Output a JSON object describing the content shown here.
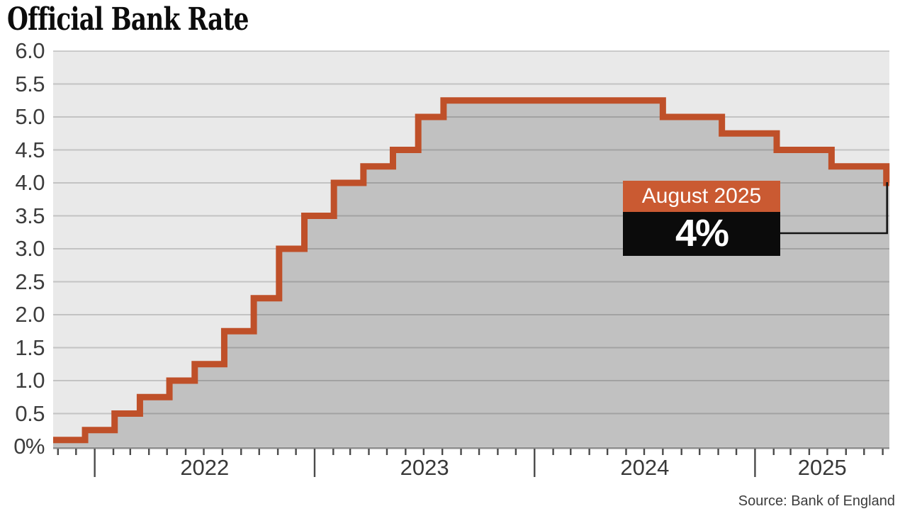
{
  "chart_data": {
    "type": "area",
    "subtype": "step-after",
    "title": "Official Bank Rate",
    "source": "Source: Bank of England",
    "xlabel": "",
    "ylabel": "",
    "unit": "%",
    "ylim": [
      0,
      6
    ],
    "grid": "on",
    "legend": "none",
    "x_range": [
      "2021-10-24",
      "2025-08-12"
    ],
    "y_ticks": [
      {
        "value": 6.0,
        "label": "6.0"
      },
      {
        "value": 5.5,
        "label": "5.5"
      },
      {
        "value": 5.0,
        "label": "5.0"
      },
      {
        "value": 4.5,
        "label": "4.5"
      },
      {
        "value": 4.0,
        "label": "4.0"
      },
      {
        "value": 3.5,
        "label": "3.5"
      },
      {
        "value": 3.0,
        "label": "3.0"
      },
      {
        "value": 2.5,
        "label": "2.5"
      },
      {
        "value": 2.0,
        "label": "2.0"
      },
      {
        "value": 1.5,
        "label": "1.5"
      },
      {
        "value": 1.0,
        "label": "1.0"
      },
      {
        "value": 0.5,
        "label": "0.5"
      },
      {
        "value": 0.0,
        "label": "0%"
      }
    ],
    "x_year_labels": [
      "2022",
      "2023",
      "2024",
      "2025"
    ],
    "series": [
      {
        "name": "Official Bank Rate (%)",
        "points": [
          {
            "date": "2021-10-24",
            "rate": 0.1
          },
          {
            "date": "2021-12-16",
            "rate": 0.25
          },
          {
            "date": "2022-02-03",
            "rate": 0.5
          },
          {
            "date": "2022-03-17",
            "rate": 0.75
          },
          {
            "date": "2022-05-05",
            "rate": 1.0
          },
          {
            "date": "2022-06-16",
            "rate": 1.25
          },
          {
            "date": "2022-08-04",
            "rate": 1.75
          },
          {
            "date": "2022-09-22",
            "rate": 2.25
          },
          {
            "date": "2022-11-03",
            "rate": 3.0
          },
          {
            "date": "2022-12-15",
            "rate": 3.5
          },
          {
            "date": "2023-02-02",
            "rate": 4.0
          },
          {
            "date": "2023-03-23",
            "rate": 4.25
          },
          {
            "date": "2023-05-11",
            "rate": 4.5
          },
          {
            "date": "2023-06-22",
            "rate": 5.0
          },
          {
            "date": "2023-08-03",
            "rate": 5.25
          },
          {
            "date": "2024-08-01",
            "rate": 5.0
          },
          {
            "date": "2024-11-07",
            "rate": 4.75
          },
          {
            "date": "2025-02-06",
            "rate": 4.5
          },
          {
            "date": "2025-05-08",
            "rate": 4.25
          },
          {
            "date": "2025-08-07",
            "rate": 4.0
          }
        ]
      }
    ],
    "annotation": {
      "label": "August 2025",
      "value": "4%",
      "target_date": "2025-08-07",
      "target_rate": 4.0
    },
    "colors": {
      "line": "#BF5029",
      "area_fill": "#C1C1C1",
      "plot_bg": "#E9E9E9",
      "grid": "rgba(0,0,0,0.16)",
      "axis": "#8E8E8E",
      "tick": "#4A4A4A",
      "callout_label_bg": "#CA5A32",
      "callout_value_bg": "#0B0B0B",
      "callout_text": "#FFFFFF",
      "connector": "#141414",
      "label_text": "#3D3D3D",
      "title_text": "#0C0C0C"
    }
  }
}
